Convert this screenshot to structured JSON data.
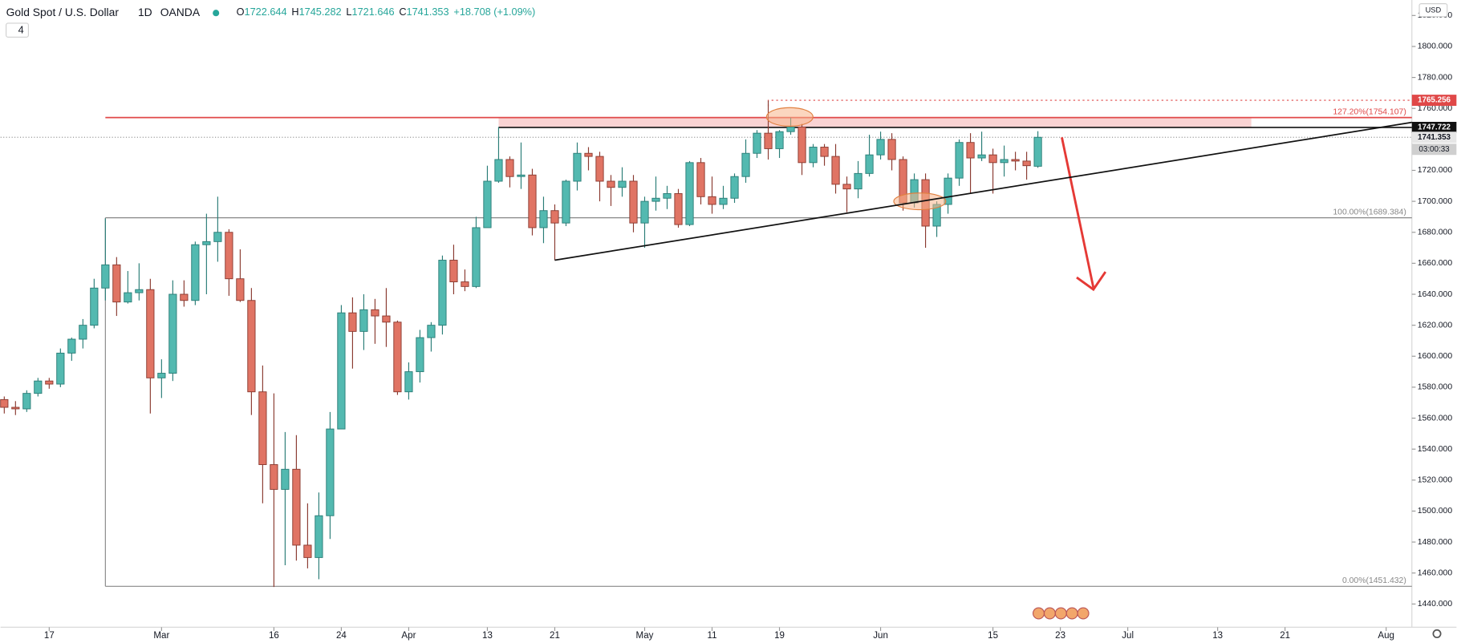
{
  "header": {
    "symbol": "Gold Spot / U.S. Dollar",
    "interval": "1D",
    "source": "OANDA",
    "prefixes": [
      "O",
      "H",
      "L",
      "C"
    ],
    "change": "+18.708 (+1.09%)",
    "badge": "4",
    "currency": "USD"
  },
  "chart_data": {
    "type": "candlestick",
    "open": [
      1572,
      1567,
      1566,
      1576,
      1584,
      1582,
      1602,
      1611,
      1620,
      1644,
      1659,
      1635,
      1641,
      1643,
      1586,
      1589,
      1640,
      1636,
      1672,
      1674,
      1680,
      1650,
      1636,
      1577,
      1530,
      1514,
      1527,
      1478,
      1470,
      1497,
      1553,
      1628,
      1616,
      1630,
      1626,
      1622,
      1577,
      1590,
      1612,
      1620,
      1662,
      1648,
      1645,
      1683,
      1713,
      1727,
      1716,
      1717,
      1683,
      1694,
      1686,
      1713,
      1731,
      1729,
      1713,
      1709,
      1713,
      1686,
      1700,
      1702,
      1705,
      1685,
      1725,
      1703,
      1698,
      1702,
      1716,
      1731,
      1744,
      1734,
      1745,
      1748,
      1725,
      1735,
      1729,
      1711,
      1708,
      1718,
      1730,
      1740,
      1727,
      1699,
      1714,
      1684,
      1698,
      1715,
      1738,
      1728,
      1730,
      1725,
      1727,
      1726,
      1722.644
    ],
    "high": [
      1574,
      1571,
      1578,
      1586,
      1586,
      1605,
      1612,
      1624,
      1650,
      1689,
      1664,
      1655,
      1660,
      1650,
      1598,
      1649,
      1649,
      1674,
      1692,
      1703,
      1682,
      1669,
      1644,
      1594,
      1576,
      1551,
      1549,
      1505,
      1512,
      1564,
      1633,
      1638,
      1640,
      1637,
      1644,
      1623,
      1596,
      1617,
      1622,
      1665,
      1672,
      1656,
      1690,
      1723,
      1748,
      1729,
      1738,
      1721,
      1703,
      1698,
      1714,
      1738,
      1735,
      1732,
      1717,
      1722,
      1717,
      1703,
      1716,
      1710,
      1708,
      1726,
      1728,
      1716,
      1710,
      1718,
      1740,
      1746,
      1765,
      1746,
      1754,
      1750,
      1737,
      1737,
      1737,
      1716,
      1726,
      1743,
      1745,
      1744,
      1729,
      1718,
      1718,
      1700,
      1718,
      1740,
      1744,
      1745,
      1734,
      1736,
      1732,
      1732,
      1745.282
    ],
    "low": [
      1563,
      1562,
      1564,
      1574,
      1579,
      1580,
      1597,
      1605,
      1618,
      1636,
      1626,
      1634,
      1636,
      1563,
      1573,
      1584,
      1632,
      1633,
      1640,
      1661,
      1639,
      1635,
      1562,
      1505,
      1451,
      1465,
      1468,
      1463,
      1456,
      1482,
      1553,
      1592,
      1604,
      1608,
      1606,
      1575,
      1572,
      1583,
      1603,
      1614,
      1640,
      1642,
      1644,
      1683,
      1712,
      1709,
      1708,
      1678,
      1673,
      1662,
      1684,
      1707,
      1720,
      1700,
      1697,
      1703,
      1680,
      1670,
      1694,
      1695,
      1683,
      1684,
      1698,
      1692,
      1695,
      1699,
      1712,
      1728,
      1727,
      1728,
      1743,
      1717,
      1722,
      1723,
      1705,
      1693,
      1702,
      1716,
      1727,
      1720,
      1694,
      1696,
      1670,
      1677,
      1692,
      1710,
      1705,
      1726,
      1705,
      1716,
      1720,
      1714,
      1721.646
    ],
    "close": [
      1567,
      1566,
      1576,
      1584,
      1582,
      1602,
      1611,
      1620,
      1644,
      1659,
      1635,
      1641,
      1643,
      1586,
      1589,
      1640,
      1636,
      1672,
      1674,
      1680,
      1650,
      1636,
      1577,
      1530,
      1514,
      1527,
      1478,
      1470,
      1497,
      1553,
      1628,
      1616,
      1630,
      1626,
      1622,
      1577,
      1590,
      1612,
      1620,
      1662,
      1648,
      1645,
      1683,
      1713,
      1727,
      1716,
      1717,
      1683,
      1694,
      1686,
      1713,
      1731,
      1729,
      1713,
      1709,
      1713,
      1686,
      1700,
      1702,
      1705,
      1685,
      1725,
      1703,
      1698,
      1702,
      1716,
      1731,
      1744,
      1734,
      1745,
      1748,
      1725,
      1735,
      1729,
      1711,
      1708,
      1718,
      1730,
      1740,
      1727,
      1699,
      1714,
      1684,
      1698,
      1715,
      1738,
      1728,
      1730,
      1725,
      1727,
      1726,
      1723,
      1741.353
    ],
    "up_color": "#53b9b0",
    "down_color": "#e07464",
    "ylim": [
      1425,
      1830
    ],
    "yticks": [
      {
        "value": 1440,
        "label": "1440.000"
      },
      {
        "value": 1460,
        "label": "1460.000"
      },
      {
        "value": 1480,
        "label": "1480.000"
      },
      {
        "value": 1500,
        "label": "1500.000"
      },
      {
        "value": 1520,
        "label": "1520.000"
      },
      {
        "value": 1540,
        "label": "1540.000"
      },
      {
        "value": 1560,
        "label": "1560.000"
      },
      {
        "value": 1580,
        "label": "1580.000"
      },
      {
        "value": 1600,
        "label": "1600.000"
      },
      {
        "value": 1620,
        "label": "1620.000"
      },
      {
        "value": 1640,
        "label": "1640.000"
      },
      {
        "value": 1660,
        "label": "1660.000"
      },
      {
        "value": 1680,
        "label": "1680.000"
      },
      {
        "value": 1700,
        "label": "1700.000"
      },
      {
        "value": 1720,
        "label": "1720.000"
      },
      {
        "value": 1740,
        "label": "1740.000"
      },
      {
        "value": 1760,
        "label": "1760.000"
      },
      {
        "value": 1780,
        "label": "1780.000"
      },
      {
        "value": 1800,
        "label": "1800.000"
      },
      {
        "value": 1820,
        "label": "1820.000"
      }
    ],
    "xticks": [
      {
        "value": 4,
        "label": "17"
      },
      {
        "value": 14,
        "label": "Mar"
      },
      {
        "value": 24,
        "label": "16"
      },
      {
        "value": 30,
        "label": "24"
      },
      {
        "value": 36,
        "label": "Apr"
      },
      {
        "value": 43,
        "label": "13"
      },
      {
        "value": 49,
        "label": "21"
      },
      {
        "value": 57,
        "label": "May"
      },
      {
        "value": 63,
        "label": "11"
      },
      {
        "value": 69,
        "label": "19"
      },
      {
        "value": 78,
        "label": "Jun"
      },
      {
        "value": 88,
        "label": "15"
      },
      {
        "value": 94,
        "label": "23"
      },
      {
        "value": 100,
        "label": "Jul"
      },
      {
        "value": 108,
        "label": "13"
      },
      {
        "value": 114,
        "label": "21"
      },
      {
        "value": 123,
        "label": "Aug"
      }
    ],
    "fib_levels": [
      {
        "value": 1754.107,
        "label": "127.20%(1754.107)",
        "color": "#e04848"
      },
      {
        "value": 1689.384,
        "label": "100.00%(1689.384)",
        "color": "#888888"
      },
      {
        "value": 1451.432,
        "label": "0.00%(1451.432)",
        "color": "#888888"
      }
    ],
    "resistance": [
      1747.722,
      1754.107
    ],
    "swing_high": 1765.256,
    "trendline": [
      1662,
      1751
    ],
    "countdown": "03:00:33"
  }
}
